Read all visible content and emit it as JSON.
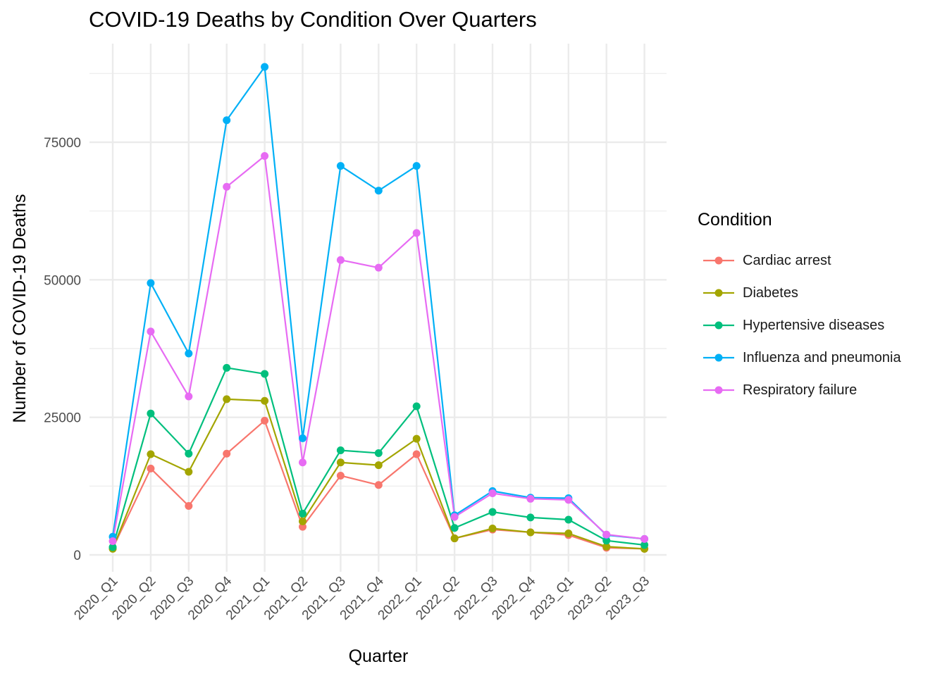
{
  "chart_data": {
    "type": "line",
    "title": "COVID-19 Deaths by Condition Over Quarters",
    "xlabel": "Quarter",
    "ylabel": "Number of COVID-19 Deaths",
    "categories": [
      "2020_Q1",
      "2020_Q2",
      "2020_Q3",
      "2020_Q4",
      "2021_Q1",
      "2021_Q2",
      "2021_Q3",
      "2021_Q4",
      "2022_Q1",
      "2022_Q2",
      "2022_Q3",
      "2022_Q4",
      "2023_Q1",
      "2023_Q2",
      "2023_Q3"
    ],
    "y_ticks": [
      0,
      25000,
      50000,
      75000
    ],
    "ylim": [
      -2500,
      93000
    ],
    "grid": true,
    "legend": {
      "title": "Condition",
      "position": "right"
    },
    "series": [
      {
        "name": "Cardiac arrest",
        "color": "#F8766D",
        "values": [
          1200,
          15700,
          8900,
          18400,
          24400,
          5100,
          14400,
          12700,
          18300,
          3000,
          4600,
          4100,
          3600,
          1300,
          1100
        ]
      },
      {
        "name": "Diabetes",
        "color": "#A3A500",
        "values": [
          1100,
          18300,
          15100,
          28300,
          28000,
          6100,
          16800,
          16300,
          21100,
          3000,
          4800,
          4100,
          3900,
          1500,
          1100
        ]
      },
      {
        "name": "Hypertensive diseases",
        "color": "#00BF7D",
        "values": [
          1400,
          25700,
          18400,
          34000,
          32900,
          7500,
          19000,
          18500,
          27000,
          4900,
          7800,
          6800,
          6400,
          2600,
          1800
        ]
      },
      {
        "name": "Influenza and pneumonia",
        "color": "#00B0F6",
        "values": [
          3300,
          49400,
          36600,
          79000,
          88700,
          21200,
          70700,
          66200,
          70700,
          7200,
          11600,
          10400,
          10300,
          3600,
          2900
        ]
      },
      {
        "name": "Respiratory failure",
        "color": "#E76BF3",
        "values": [
          2500,
          40600,
          28800,
          66900,
          72500,
          16800,
          53600,
          52200,
          58500,
          6900,
          11200,
          10200,
          10000,
          3700,
          2900
        ]
      }
    ]
  }
}
